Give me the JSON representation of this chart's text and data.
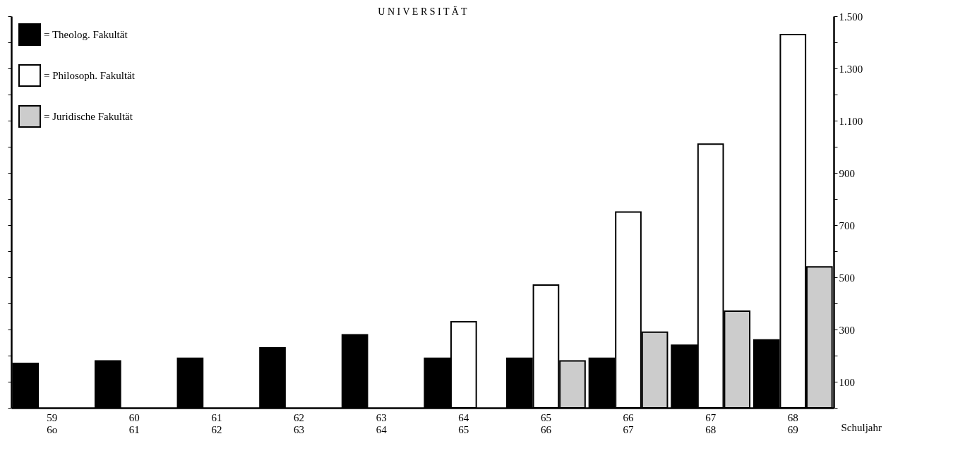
{
  "chart_data": {
    "type": "bar",
    "title": "U N I V E R S I T Ä T",
    "xlabel": "Schuljahr",
    "categories": [
      "59\n6o",
      "60\n61",
      "61\n62",
      "62\n63",
      "63\n64",
      "64\n65",
      "65\n66",
      "66\n67",
      "67\n68",
      "68\n69"
    ],
    "series": [
      {
        "name": "= Theolog. Fakultät",
        "color": "#000000",
        "values": [
          170,
          180,
          190,
          230,
          280,
          190,
          190,
          190,
          240,
          260
        ]
      },
      {
        "name": "= Philosoph. Fakultät",
        "color": "#ffffff",
        "values": [
          null,
          null,
          null,
          null,
          null,
          330,
          470,
          750,
          1010,
          1430
        ]
      },
      {
        "name": "= Juridische Fakultät",
        "color": "#cccccc",
        "values": [
          null,
          null,
          null,
          null,
          null,
          null,
          180,
          290,
          370,
          540
        ]
      }
    ],
    "ylim": [
      0,
      1500
    ],
    "yticks": [
      {
        "value": 0,
        "label": null
      },
      100,
      {
        "value": 200,
        "label": null
      },
      300,
      {
        "value": 400,
        "label": null
      },
      500,
      {
        "value": 600,
        "label": null
      },
      700,
      {
        "value": 800,
        "label": null
      },
      900,
      {
        "value": 1000,
        "label": null
      },
      {
        "value": 1100,
        "label": "1.100"
      },
      {
        "value": 1200,
        "label": null
      },
      {
        "value": 1300,
        "label": "1.300"
      },
      {
        "value": 1400,
        "label": null
      },
      {
        "value": 1500,
        "label": "1.500"
      }
    ],
    "grid": false,
    "legend": "top left"
  }
}
